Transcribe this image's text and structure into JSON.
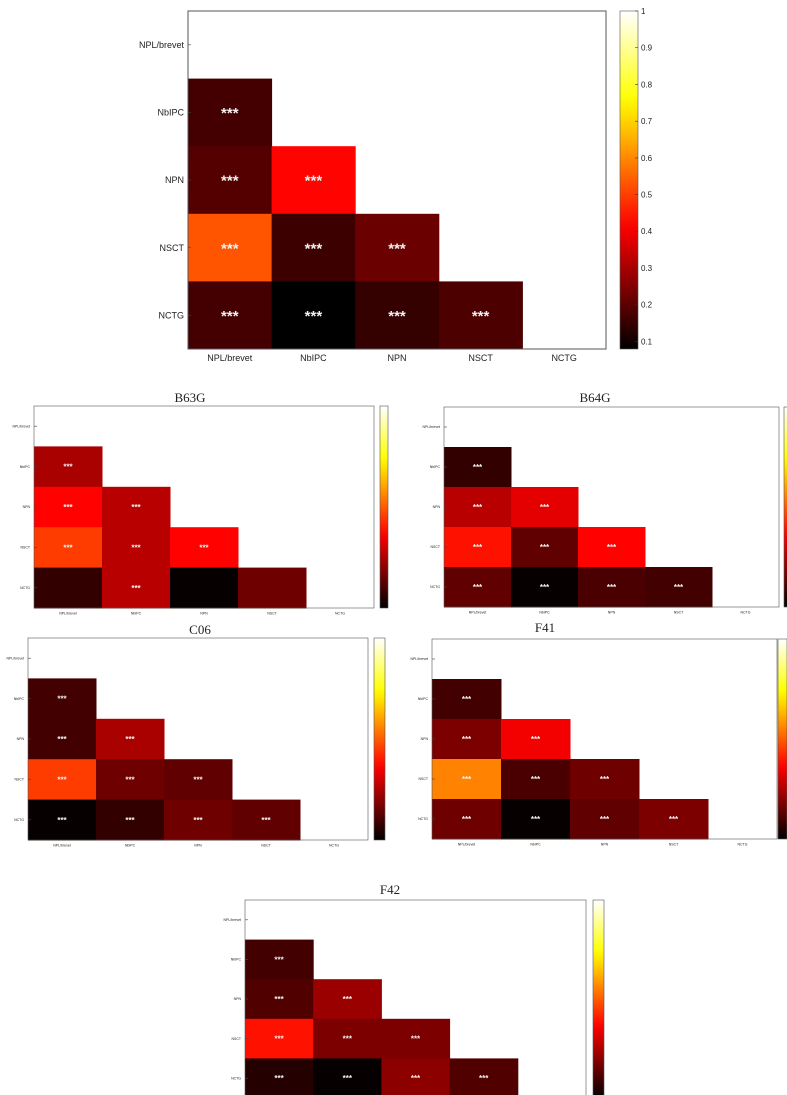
{
  "colors": {
    "colormap": "hot",
    "star_color": "#f2f2f2",
    "axis_color": "#555555"
  },
  "chart_data": [
    {
      "type": "heatmap",
      "title": "",
      "labels": [
        "NPL/brevet",
        "NbIPC",
        "NPN",
        "NSCT",
        "NCTG"
      ],
      "cells": [
        {
          "row": 1,
          "col": 0,
          "value": 0.17,
          "sig": "***"
        },
        {
          "row": 2,
          "col": 0,
          "value": 0.19,
          "sig": "***"
        },
        {
          "row": 2,
          "col": 1,
          "value": 0.42,
          "sig": "***"
        },
        {
          "row": 3,
          "col": 0,
          "value": 0.53,
          "sig": "***"
        },
        {
          "row": 3,
          "col": 1,
          "value": 0.16,
          "sig": "***"
        },
        {
          "row": 3,
          "col": 2,
          "value": 0.22,
          "sig": "***"
        },
        {
          "row": 4,
          "col": 0,
          "value": 0.17,
          "sig": "***"
        },
        {
          "row": 4,
          "col": 1,
          "value": 0.07,
          "sig": "***"
        },
        {
          "row": 4,
          "col": 2,
          "value": 0.15,
          "sig": "***"
        },
        {
          "row": 4,
          "col": 3,
          "value": 0.18,
          "sig": "***"
        }
      ],
      "colorbar": {
        "range": [
          0.08,
          1
        ],
        "ticks": [
          "0.1",
          "0.2",
          "0.3",
          "0.4",
          "0.5",
          "0.6",
          "0.7",
          "0.8",
          "0.9",
          "1"
        ]
      }
    },
    {
      "type": "heatmap",
      "title": "B63G",
      "labels": [
        "NPL/brevet",
        "NbIPC",
        "NPN",
        "NSCT",
        "NCTG"
      ],
      "cells": [
        {
          "row": 1,
          "col": 0,
          "value": 0.28,
          "sig": "***"
        },
        {
          "row": 2,
          "col": 0,
          "value": 0.4,
          "sig": "***"
        },
        {
          "row": 2,
          "col": 1,
          "value": 0.3,
          "sig": "***"
        },
        {
          "row": 3,
          "col": 0,
          "value": 0.48,
          "sig": "***"
        },
        {
          "row": 3,
          "col": 1,
          "value": 0.3,
          "sig": "***"
        },
        {
          "row": 3,
          "col": 2,
          "value": 0.4,
          "sig": "***"
        },
        {
          "row": 4,
          "col": 0,
          "value": 0.12,
          "sig": ""
        },
        {
          "row": 4,
          "col": 1,
          "value": 0.3,
          "sig": "***"
        },
        {
          "row": 4,
          "col": 2,
          "value": 0.06,
          "sig": ""
        },
        {
          "row": 4,
          "col": 3,
          "value": 0.2,
          "sig": ""
        }
      ],
      "colorbar": {
        "range": [
          0.05,
          1
        ],
        "ticks": []
      }
    },
    {
      "type": "heatmap",
      "title": "B64G",
      "labels": [
        "NPL/brevet",
        "NbIPC",
        "NPN",
        "NSCT",
        "NCTG"
      ],
      "cells": [
        {
          "row": 1,
          "col": 0,
          "value": 0.12,
          "sig": "***"
        },
        {
          "row": 2,
          "col": 0,
          "value": 0.3,
          "sig": "***"
        },
        {
          "row": 2,
          "col": 1,
          "value": 0.36,
          "sig": "***"
        },
        {
          "row": 3,
          "col": 0,
          "value": 0.42,
          "sig": "***"
        },
        {
          "row": 3,
          "col": 1,
          "value": 0.18,
          "sig": "***"
        },
        {
          "row": 3,
          "col": 2,
          "value": 0.4,
          "sig": "***"
        },
        {
          "row": 4,
          "col": 0,
          "value": 0.18,
          "sig": "***"
        },
        {
          "row": 4,
          "col": 1,
          "value": 0.06,
          "sig": "***"
        },
        {
          "row": 4,
          "col": 2,
          "value": 0.15,
          "sig": "***"
        },
        {
          "row": 4,
          "col": 3,
          "value": 0.14,
          "sig": "***"
        }
      ],
      "colorbar": {
        "range": [
          0.05,
          1
        ],
        "ticks": []
      }
    },
    {
      "type": "heatmap",
      "title": "C06",
      "labels": [
        "NPL/brevet",
        "NbIPC",
        "NPN",
        "NSCT",
        "NCTG"
      ],
      "cells": [
        {
          "row": 1,
          "col": 0,
          "value": 0.14,
          "sig": "***"
        },
        {
          "row": 2,
          "col": 0,
          "value": 0.14,
          "sig": "***"
        },
        {
          "row": 2,
          "col": 1,
          "value": 0.28,
          "sig": "***"
        },
        {
          "row": 3,
          "col": 0,
          "value": 0.48,
          "sig": "***"
        },
        {
          "row": 3,
          "col": 1,
          "value": 0.2,
          "sig": "***"
        },
        {
          "row": 3,
          "col": 2,
          "value": 0.18,
          "sig": "***"
        },
        {
          "row": 4,
          "col": 0,
          "value": 0.06,
          "sig": "***"
        },
        {
          "row": 4,
          "col": 1,
          "value": 0.12,
          "sig": "***"
        },
        {
          "row": 4,
          "col": 2,
          "value": 0.2,
          "sig": "***"
        },
        {
          "row": 4,
          "col": 3,
          "value": 0.18,
          "sig": "***"
        }
      ],
      "colorbar": {
        "range": [
          0.05,
          1
        ],
        "ticks": []
      }
    },
    {
      "type": "heatmap",
      "title": "F41",
      "labels": [
        "NPL/brevet",
        "NbIPC",
        "NPN",
        "NSCT",
        "NCTG"
      ],
      "cells": [
        {
          "row": 1,
          "col": 0,
          "value": 0.14,
          "sig": "***"
        },
        {
          "row": 2,
          "col": 0,
          "value": 0.22,
          "sig": "***"
        },
        {
          "row": 2,
          "col": 1,
          "value": 0.38,
          "sig": "***"
        },
        {
          "row": 3,
          "col": 0,
          "value": 0.58,
          "sig": "***"
        },
        {
          "row": 3,
          "col": 1,
          "value": 0.15,
          "sig": "***"
        },
        {
          "row": 3,
          "col": 2,
          "value": 0.2,
          "sig": "***"
        },
        {
          "row": 4,
          "col": 0,
          "value": 0.2,
          "sig": "***"
        },
        {
          "row": 4,
          "col": 1,
          "value": 0.06,
          "sig": "***"
        },
        {
          "row": 4,
          "col": 2,
          "value": 0.18,
          "sig": "***"
        },
        {
          "row": 4,
          "col": 3,
          "value": 0.22,
          "sig": "***"
        }
      ],
      "colorbar": {
        "range": [
          0.05,
          1
        ],
        "ticks": []
      }
    },
    {
      "type": "heatmap",
      "title": "F42",
      "labels": [
        "NPL/brevet",
        "NbIPC",
        "NPN",
        "NSCT",
        "NCTG"
      ],
      "cells": [
        {
          "row": 1,
          "col": 0,
          "value": 0.14,
          "sig": "***"
        },
        {
          "row": 2,
          "col": 0,
          "value": 0.16,
          "sig": "***"
        },
        {
          "row": 2,
          "col": 1,
          "value": 0.26,
          "sig": "***"
        },
        {
          "row": 3,
          "col": 0,
          "value": 0.42,
          "sig": "***"
        },
        {
          "row": 3,
          "col": 1,
          "value": 0.22,
          "sig": "***"
        },
        {
          "row": 3,
          "col": 2,
          "value": 0.22,
          "sig": "***"
        },
        {
          "row": 4,
          "col": 0,
          "value": 0.1,
          "sig": "***"
        },
        {
          "row": 4,
          "col": 1,
          "value": 0.06,
          "sig": "***"
        },
        {
          "row": 4,
          "col": 2,
          "value": 0.24,
          "sig": "***"
        },
        {
          "row": 4,
          "col": 3,
          "value": 0.16,
          "sig": "***"
        }
      ],
      "colorbar": {
        "range": [
          0.05,
          1
        ],
        "ticks": []
      }
    }
  ]
}
